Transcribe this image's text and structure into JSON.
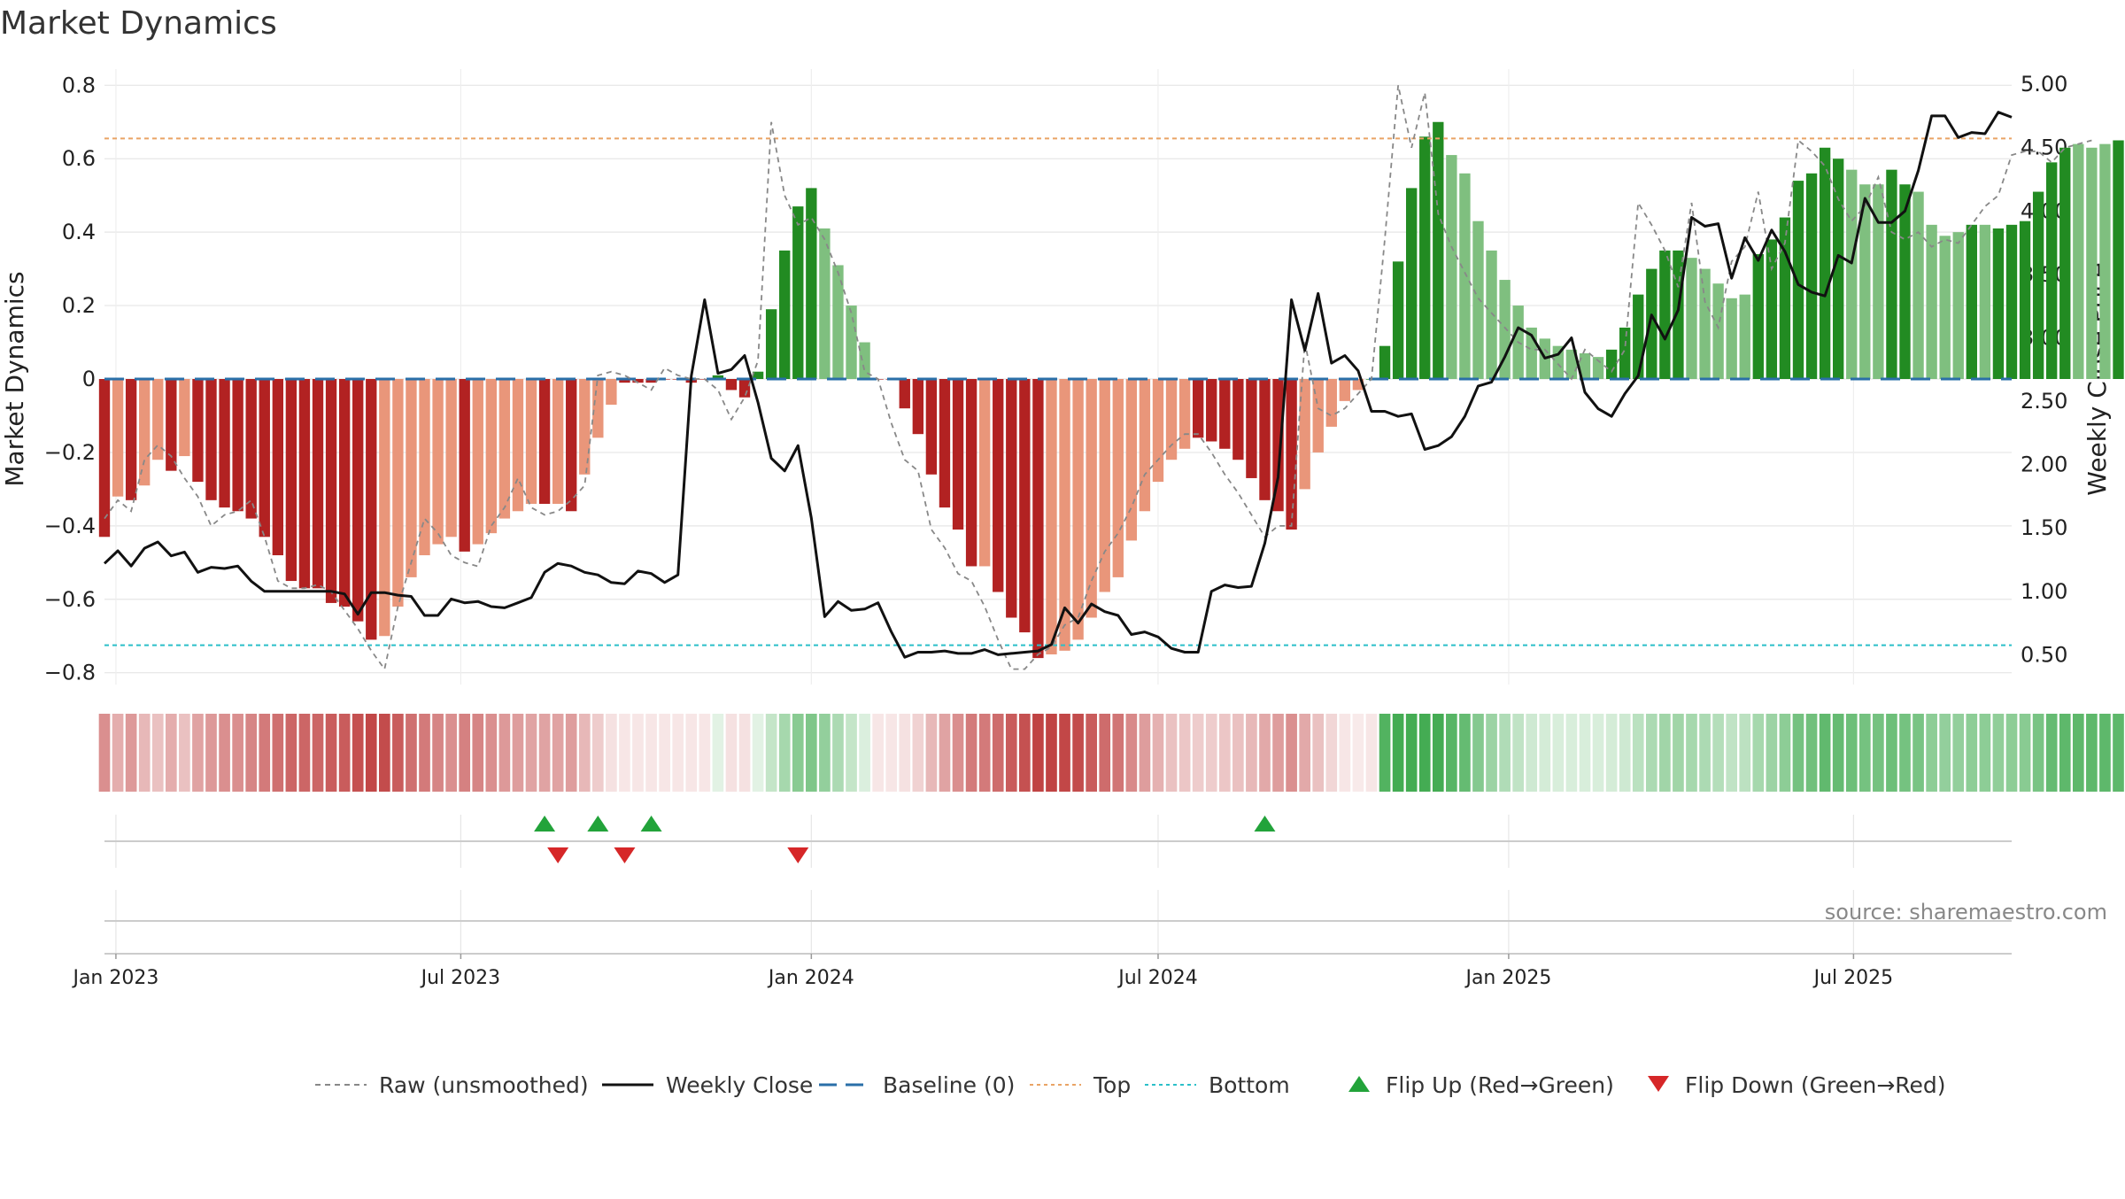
{
  "chart_data": {
    "type": "bar",
    "title": "Market Dynamics",
    "ylabel_left": "Market Dynamics",
    "ylabel_right": "Weekly Close Price",
    "xlabel": "",
    "ylim_left": [
      -0.82,
      0.82
    ],
    "ylim_right": [
      0.3,
      5.05
    ],
    "yticks_left": [
      -0.8,
      -0.6,
      -0.4,
      -0.2,
      0,
      0.2,
      0.4,
      0.6,
      0.8
    ],
    "yticks_right": [
      "0.50",
      "1.00",
      "1.50",
      "2.00",
      "2.50",
      "3.00",
      "3.50",
      "4.00",
      "4.50",
      "5.00"
    ],
    "x_start": "2022-12-26",
    "x_end": "2025-09-22",
    "xticks": [
      {
        "date": "2023-01-01",
        "label": "Jan 2023"
      },
      {
        "date": "2023-07-01",
        "label": "Jul 2023"
      },
      {
        "date": "2024-01-01",
        "label": "Jan 2024"
      },
      {
        "date": "2024-07-01",
        "label": "Jul 2024"
      },
      {
        "date": "2025-01-01",
        "label": "Jan 2025"
      },
      {
        "date": "2025-07-01",
        "label": "Jul 2025"
      }
    ],
    "first_week": "2022-12-26",
    "week_step_days": 7,
    "top_level": 0.655,
    "bottom_level": -0.725,
    "baseline": 0,
    "grid": true,
    "legend_position": "bottom",
    "series": [
      {
        "name": "Market Dynamics",
        "kind": "bar",
        "values": [
          -0.43,
          -0.32,
          -0.33,
          -0.29,
          -0.22,
          -0.25,
          -0.21,
          -0.28,
          -0.33,
          -0.35,
          -0.36,
          -0.38,
          -0.43,
          -0.48,
          -0.55,
          -0.57,
          -0.57,
          -0.61,
          -0.62,
          -0.66,
          -0.71,
          -0.7,
          -0.62,
          -0.54,
          -0.48,
          -0.45,
          -0.43,
          -0.47,
          -0.45,
          -0.42,
          -0.38,
          -0.36,
          -0.34,
          -0.34,
          -0.34,
          -0.36,
          -0.26,
          -0.16,
          -0.07,
          -0.01,
          -0.01,
          -0.01,
          0.0,
          0.0,
          -0.01,
          0.0,
          0.01,
          -0.03,
          -0.05,
          0.02,
          0.19,
          0.35,
          0.47,
          0.52,
          0.41,
          0.31,
          0.2,
          0.1,
          0.0,
          0.0,
          -0.08,
          -0.15,
          -0.26,
          -0.35,
          -0.41,
          -0.51,
          -0.51,
          -0.58,
          -0.65,
          -0.69,
          -0.76,
          -0.75,
          -0.74,
          -0.71,
          -0.65,
          -0.58,
          -0.54,
          -0.44,
          -0.36,
          -0.28,
          -0.22,
          -0.19,
          -0.16,
          -0.17,
          -0.19,
          -0.22,
          -0.27,
          -0.33,
          -0.36,
          -0.41,
          -0.3,
          -0.2,
          -0.13,
          -0.06,
          -0.03,
          0.0,
          0.09,
          0.32,
          0.52,
          0.66,
          0.7,
          0.61,
          0.56,
          0.43,
          0.35,
          0.27,
          0.2,
          0.14,
          0.11,
          0.09,
          0.08,
          0.07,
          0.06,
          0.08,
          0.14,
          0.23,
          0.3,
          0.35,
          0.35,
          0.33,
          0.3,
          0.26,
          0.22,
          0.23,
          0.34,
          0.38,
          0.44,
          0.54,
          0.56,
          0.63,
          0.6,
          0.57,
          0.53,
          0.53,
          0.57,
          0.53,
          0.51,
          0.42,
          0.39,
          0.4,
          0.42,
          0.42,
          0.41,
          0.42,
          0.43,
          0.51,
          0.59,
          0.63,
          0.64,
          0.63,
          0.64,
          0.65
        ],
        "colors": [
          "#b22222",
          "#e9967a",
          "#b22222",
          "#e9967a",
          "#e9967a",
          "#b22222",
          "#e9967a",
          "#b22222",
          "#b22222",
          "#b22222",
          "#b22222",
          "#b22222",
          "#b22222",
          "#b22222",
          "#b22222",
          "#b22222",
          "#b22222",
          "#b22222",
          "#b22222",
          "#b22222",
          "#b22222",
          "#e9967a",
          "#e9967a",
          "#e9967a",
          "#e9967a",
          "#e9967a",
          "#e9967a",
          "#b22222",
          "#e9967a",
          "#e9967a",
          "#e9967a",
          "#e9967a",
          "#e9967a",
          "#b22222",
          "#e9967a",
          "#b22222",
          "#e9967a",
          "#e9967a",
          "#e9967a",
          "#b22222",
          "#b22222",
          "#b22222",
          "#b22222",
          "#b22222",
          "#b22222",
          "#b22222",
          "#228b22",
          "#b22222",
          "#b22222",
          "#228b22",
          "#228b22",
          "#228b22",
          "#228b22",
          "#228b22",
          "#7fbf7f",
          "#7fbf7f",
          "#7fbf7f",
          "#7fbf7f",
          "#b22222",
          "#b22222",
          "#b22222",
          "#b22222",
          "#b22222",
          "#b22222",
          "#b22222",
          "#b22222",
          "#e9967a",
          "#b22222",
          "#b22222",
          "#b22222",
          "#b22222",
          "#e9967a",
          "#e9967a",
          "#e9967a",
          "#e9967a",
          "#e9967a",
          "#e9967a",
          "#e9967a",
          "#e9967a",
          "#e9967a",
          "#e9967a",
          "#e9967a",
          "#b22222",
          "#b22222",
          "#b22222",
          "#b22222",
          "#b22222",
          "#b22222",
          "#b22222",
          "#b22222",
          "#e9967a",
          "#e9967a",
          "#e9967a",
          "#e9967a",
          "#e9967a",
          "#228b22",
          "#228b22",
          "#228b22",
          "#228b22",
          "#228b22",
          "#228b22",
          "#7fbf7f",
          "#7fbf7f",
          "#7fbf7f",
          "#7fbf7f",
          "#7fbf7f",
          "#7fbf7f",
          "#7fbf7f",
          "#7fbf7f",
          "#7fbf7f",
          "#7fbf7f",
          "#7fbf7f",
          "#7fbf7f",
          "#228b22",
          "#228b22",
          "#228b22",
          "#228b22",
          "#228b22",
          "#228b22",
          "#7fbf7f",
          "#7fbf7f",
          "#7fbf7f",
          "#7fbf7f",
          "#7fbf7f",
          "#228b22",
          "#228b22",
          "#228b22",
          "#228b22",
          "#228b22",
          "#228b22",
          "#228b22",
          "#7fbf7f",
          "#7fbf7f",
          "#7fbf7f",
          "#228b22",
          "#228b22",
          "#7fbf7f",
          "#7fbf7f",
          "#7fbf7f",
          "#7fbf7f",
          "#228b22",
          "#7fbf7f",
          "#228b22",
          "#228b22",
          "#228b22",
          "#228b22",
          "#228b22",
          "#228b22",
          "#7fbf7f",
          "#7fbf7f",
          "#7fbf7f",
          "#228b22"
        ]
      },
      {
        "name": "Raw (unsmoothed)",
        "kind": "line",
        "axis": "left",
        "color": "#888888",
        "dash": "dashed",
        "values": [
          -0.38,
          -0.33,
          -0.36,
          -0.22,
          -0.18,
          -0.21,
          -0.27,
          -0.32,
          -0.4,
          -0.37,
          -0.36,
          -0.33,
          -0.43,
          -0.55,
          -0.57,
          -0.57,
          -0.56,
          -0.58,
          -0.63,
          -0.68,
          -0.74,
          -0.79,
          -0.62,
          -0.5,
          -0.38,
          -0.42,
          -0.48,
          -0.5,
          -0.51,
          -0.4,
          -0.35,
          -0.27,
          -0.35,
          -0.37,
          -0.36,
          -0.33,
          -0.29,
          0.01,
          0.02,
          0.01,
          -0.01,
          -0.03,
          0.03,
          0.01,
          0.0,
          0.0,
          -0.03,
          -0.11,
          -0.05,
          0.05,
          0.7,
          0.5,
          0.42,
          0.44,
          0.38,
          0.29,
          0.18,
          0.02,
          0.0,
          -0.12,
          -0.22,
          -0.25,
          -0.41,
          -0.46,
          -0.53,
          -0.55,
          -0.62,
          -0.71,
          -0.79,
          -0.79,
          -0.75,
          -0.73,
          -0.67,
          -0.65,
          -0.55,
          -0.47,
          -0.42,
          -0.35,
          -0.26,
          -0.22,
          -0.18,
          -0.15,
          -0.15,
          -0.2,
          -0.26,
          -0.31,
          -0.37,
          -0.43,
          -0.4,
          -0.4,
          0.1,
          -0.08,
          -0.1,
          -0.08,
          -0.04,
          0.0,
          0.38,
          0.8,
          0.63,
          0.78,
          0.45,
          0.36,
          0.29,
          0.22,
          0.18,
          0.14,
          0.1,
          0.08,
          0.08,
          0.04,
          0.0,
          0.08,
          0.05,
          0.02,
          0.08,
          0.48,
          0.42,
          0.35,
          0.25,
          0.48,
          0.21,
          0.14,
          0.32,
          0.36,
          0.51,
          0.3,
          0.37,
          0.65,
          0.62,
          0.58,
          0.49,
          0.43,
          0.47,
          0.55,
          0.4,
          0.38,
          0.4,
          0.36,
          0.38,
          0.37,
          0.42,
          0.47,
          0.5,
          0.61,
          0.62,
          0.62,
          0.59,
          0.63,
          0.64,
          0.65
        ]
      },
      {
        "name": "Weekly Close",
        "kind": "line",
        "axis": "right",
        "color": "#111111",
        "dash": "solid",
        "values": [
          1.22,
          1.32,
          1.2,
          1.34,
          1.39,
          1.28,
          1.31,
          1.15,
          1.19,
          1.18,
          1.2,
          1.08,
          1.0,
          1.0,
          1.0,
          1.0,
          1.0,
          1.0,
          0.98,
          0.82,
          0.99,
          0.99,
          0.97,
          0.96,
          0.81,
          0.81,
          0.94,
          0.91,
          0.92,
          0.88,
          0.87,
          0.91,
          0.95,
          1.15,
          1.22,
          1.2,
          1.15,
          1.13,
          1.07,
          1.06,
          1.16,
          1.14,
          1.07,
          1.13,
          2.7,
          3.3,
          2.72,
          2.75,
          2.86,
          2.49,
          2.05,
          1.95,
          2.15,
          1.58,
          0.8,
          0.92,
          0.85,
          0.86,
          0.91,
          0.68,
          0.48,
          0.52,
          0.52,
          0.53,
          0.51,
          0.51,
          0.54,
          0.5,
          0.51,
          0.52,
          0.53,
          0.58,
          0.87,
          0.75,
          0.9,
          0.84,
          0.81,
          0.66,
          0.68,
          0.64,
          0.55,
          0.52,
          0.52,
          1.0,
          1.05,
          1.03,
          1.04,
          1.38,
          1.9,
          3.3,
          2.9,
          3.35,
          2.8,
          2.86,
          2.74,
          2.42,
          2.42,
          2.38,
          2.4,
          2.12,
          2.15,
          2.22,
          2.38,
          2.62,
          2.65,
          2.85,
          3.08,
          3.02,
          2.84,
          2.87,
          3.0,
          2.57,
          2.44,
          2.38,
          2.56,
          2.7,
          3.18,
          2.99,
          3.22,
          3.95,
          3.88,
          3.9,
          3.47,
          3.79,
          3.61,
          3.85,
          3.68,
          3.42,
          3.36,
          3.33,
          3.65,
          3.59,
          4.1,
          3.91,
          3.91,
          4.0,
          4.32,
          4.75,
          4.75,
          4.58,
          4.62,
          4.61,
          4.78,
          4.74
        ]
      },
      {
        "name": "Baseline (0)",
        "kind": "hline",
        "color": "#2a6fa8"
      },
      {
        "name": "Top",
        "kind": "hline",
        "color": "#e9a465"
      },
      {
        "name": "Bottom",
        "kind": "hline",
        "color": "#2bbfc9"
      }
    ],
    "strip_alphas": [
      0.55,
      0.4,
      0.5,
      0.35,
      0.3,
      0.4,
      0.3,
      0.45,
      0.5,
      0.55,
      0.55,
      0.6,
      0.65,
      0.7,
      0.75,
      0.75,
      0.75,
      0.8,
      0.8,
      0.85,
      0.9,
      0.88,
      0.8,
      0.7,
      0.65,
      0.6,
      0.55,
      0.62,
      0.6,
      0.55,
      0.5,
      0.48,
      0.45,
      0.45,
      0.45,
      0.48,
      0.35,
      0.25,
      0.15,
      0.12,
      0.12,
      0.12,
      0.12,
      0.12,
      0.12,
      0.12,
      0.15,
      0.15,
      0.15,
      0.15,
      0.3,
      0.45,
      0.6,
      0.65,
      0.55,
      0.42,
      0.3,
      0.18,
      0.12,
      0.12,
      0.15,
      0.22,
      0.35,
      0.45,
      0.55,
      0.65,
      0.65,
      0.72,
      0.8,
      0.85,
      0.92,
      0.92,
      0.9,
      0.88,
      0.8,
      0.72,
      0.68,
      0.58,
      0.48,
      0.38,
      0.3,
      0.28,
      0.25,
      0.25,
      0.28,
      0.3,
      0.35,
      0.42,
      0.48,
      0.55,
      0.42,
      0.3,
      0.2,
      0.12,
      0.1,
      0.12,
      0.88,
      0.95,
      0.95,
      0.95,
      0.95,
      0.85,
      0.78,
      0.62,
      0.5,
      0.4,
      0.32,
      0.25,
      0.22,
      0.2,
      0.2,
      0.2,
      0.2,
      0.22,
      0.25,
      0.35,
      0.42,
      0.48,
      0.48,
      0.45,
      0.42,
      0.38,
      0.32,
      0.34,
      0.45,
      0.5,
      0.58,
      0.7,
      0.72,
      0.8,
      0.78,
      0.74,
      0.7,
      0.7,
      0.74,
      0.7,
      0.68,
      0.58,
      0.55,
      0.55,
      0.58,
      0.58,
      0.56,
      0.58,
      0.6,
      0.68,
      0.78,
      0.82,
      0.82,
      0.82,
      0.82,
      0.82
    ],
    "flip_up_dates": [
      "2023-08-14",
      "2023-09-11",
      "2023-10-09",
      "2024-08-26"
    ],
    "flip_down_dates": [
      "2023-08-21",
      "2023-09-25",
      "2023-12-25"
    ],
    "source_text": "source: sharemaestro.com",
    "legend": [
      {
        "label": "Raw (unsmoothed)",
        "kind": "dashed",
        "color": "#888888"
      },
      {
        "label": "Weekly Close",
        "kind": "solid",
        "color": "#111111"
      },
      {
        "label": "Baseline (0)",
        "kind": "longdash",
        "color": "#2a6fa8"
      },
      {
        "label": "Top",
        "kind": "dotted",
        "color": "#e9a465"
      },
      {
        "label": "Bottom",
        "kind": "dotted",
        "color": "#2bbfc9"
      },
      {
        "label": "Flip Up (Red→Green)",
        "kind": "tri-up",
        "color": "#22a33a"
      },
      {
        "label": "Flip Down (Green→Red)",
        "kind": "tri-down",
        "color": "#d62728"
      }
    ]
  }
}
